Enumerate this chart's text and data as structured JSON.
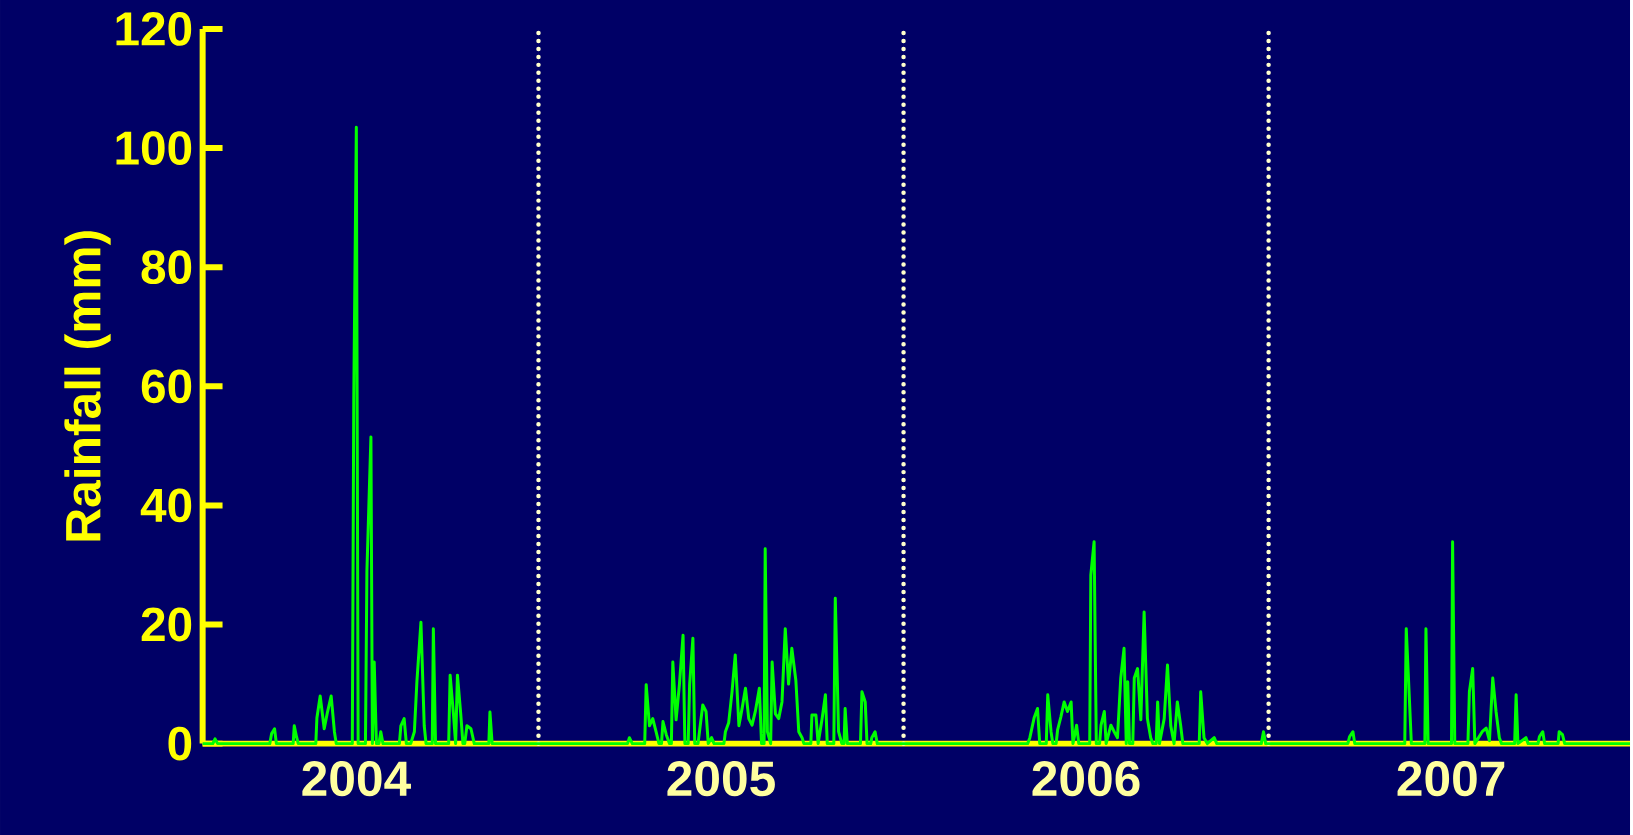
{
  "chart_data": {
    "type": "line",
    "ylabel": "Rainfall (mm)",
    "xlim": [
      2004.08,
      2007.99
    ],
    "ylim": [
      0,
      120
    ],
    "xticks": [
      {
        "value": 2004.5,
        "label": "2004"
      },
      {
        "value": 2005.5,
        "label": "2005"
      },
      {
        "value": 2006.5,
        "label": "2006"
      },
      {
        "value": 2007.5,
        "label": "2007"
      }
    ],
    "yticks": [
      0,
      20,
      40,
      60,
      80,
      100,
      120
    ],
    "ref_lines": [
      {
        "axis": "x",
        "value": 2005,
        "color": "#ffffcc",
        "line_style": "dotted"
      },
      {
        "axis": "x",
        "value": 2006,
        "color": "#ffffcc",
        "line_style": "dotted"
      },
      {
        "axis": "x",
        "value": 2007,
        "color": "#ffffcc",
        "line_style": "dotted"
      }
    ],
    "series": [
      {
        "color": "#00ff00",
        "x": [
          2004.08,
          2004.108,
          2004.114,
          2004.121,
          2004.264,
          2004.269,
          2004.277,
          2004.282,
          2004.328,
          2004.331,
          2004.337,
          2004.342,
          2004.39,
          2004.393,
          2004.402,
          2004.413,
          2004.422,
          2004.432,
          2004.441,
          2004.446,
          2004.49,
          2004.494,
          2004.501,
          2004.506,
          2004.526,
          2004.53,
          2004.541,
          2004.545,
          2004.55,
          2004.556,
          2004.563,
          2004.568,
          2004.574,
          2004.619,
          2004.623,
          2004.632,
          2004.638,
          2004.65,
          2004.66,
          2004.667,
          2004.678,
          2004.687,
          2004.692,
          2004.709,
          2004.712,
          2004.718,
          2004.754,
          2004.758,
          2004.767,
          2004.773,
          2004.778,
          2004.787,
          2004.793,
          2004.798,
          2004.804,
          2004.815,
          2004.824,
          2004.864,
          2004.867,
          2004.873,
          2005.244,
          2005.249,
          2005.257,
          2005.291,
          2005.295,
          2005.304,
          2005.313,
          2005.322,
          2005.33,
          2005.337,
          2005.341,
          2005.35,
          2005.359,
          2005.364,
          2005.368,
          2005.377,
          2005.386,
          2005.396,
          2005.401,
          2005.41,
          2005.414,
          2005.423,
          2005.428,
          2005.437,
          2005.441,
          2005.45,
          2005.459,
          2005.465,
          2005.474,
          2005.481,
          2005.508,
          2005.512,
          2005.521,
          2005.53,
          2005.539,
          2005.549,
          2005.558,
          2005.567,
          2005.576,
          2005.585,
          2005.594,
          2005.605,
          2005.611,
          2005.618,
          2005.621,
          2005.627,
          2005.636,
          2005.64,
          2005.649,
          2005.658,
          2005.667,
          2005.676,
          2005.685,
          2005.694,
          2005.705,
          2005.713,
          2005.722,
          2005.727,
          2005.746,
          2005.749,
          2005.76,
          2005.766,
          2005.777,
          2005.786,
          2005.791,
          2005.809,
          2005.813,
          2005.822,
          2005.831,
          2005.837,
          2005.84,
          2005.846,
          2005.882,
          2005.886,
          2005.895,
          2005.9,
          2005.91,
          2005.913,
          2005.922,
          2005.928,
          2006.34,
          2006.346,
          2006.358,
          2006.367,
          2006.373,
          2006.391,
          2006.395,
          2006.404,
          2006.409,
          2006.418,
          2006.422,
          2006.431,
          2006.44,
          2006.449,
          2006.459,
          2006.464,
          2006.469,
          2006.474,
          2006.48,
          2006.51,
          2006.513,
          2006.522,
          2006.528,
          2006.537,
          2006.541,
          2006.55,
          2006.555,
          2006.568,
          2006.577,
          2006.586,
          2006.595,
          2006.604,
          2006.61,
          2006.614,
          2006.619,
          2006.628,
          2006.632,
          2006.641,
          2006.65,
          2006.659,
          2006.668,
          2006.677,
          2006.683,
          2006.692,
          2006.696,
          2006.701,
          2006.714,
          2006.723,
          2006.732,
          2006.741,
          2006.75,
          2006.759,
          2006.765,
          2006.81,
          2006.814,
          2006.823,
          2006.832,
          2006.851,
          2006.858,
          2006.98,
          2006.986,
          2006.992,
          2007.217,
          2007.222,
          2007.231,
          2007.236,
          2007.373,
          2007.377,
          2007.386,
          2007.391,
          2007.428,
          2007.431,
          2007.437,
          2007.501,
          2007.504,
          2007.51,
          2007.546,
          2007.55,
          2007.559,
          2007.565,
          2007.585,
          2007.596,
          2007.605,
          2007.614,
          2007.623,
          2007.632,
          2007.638,
          2007.674,
          2007.678,
          2007.683,
          2007.705,
          2007.711,
          2007.738,
          2007.742,
          2007.751,
          2007.756,
          2007.793,
          2007.796,
          2007.805,
          2007.811,
          2007.99
        ],
        "values": [
          0,
          0,
          0.8,
          0,
          0,
          1.7,
          2.5,
          0,
          0,
          3,
          1.2,
          0,
          0,
          4.3,
          8,
          2.5,
          5.3,
          8,
          2,
          0,
          0,
          58,
          103.5,
          0,
          0,
          29,
          51.5,
          0,
          13.7,
          0,
          0,
          2,
          0,
          0,
          3,
          4.2,
          0,
          0,
          2,
          10.5,
          20.4,
          3,
          0,
          0,
          19.3,
          0,
          0,
          11.5,
          5,
          0,
          11.5,
          5,
          0,
          0,
          3,
          2.5,
          0,
          0,
          5.3,
          0,
          0,
          1,
          0,
          0,
          9.9,
          3,
          4.2,
          2,
          0,
          0,
          3.7,
          1.5,
          0,
          0,
          13.7,
          4,
          9.9,
          18.2,
          0,
          0,
          9.9,
          17.7,
          0,
          0,
          2,
          6.5,
          5.4,
          0,
          1,
          0,
          0,
          2,
          3.5,
          8.6,
          14.9,
          3,
          6,
          9.3,
          4.2,
          3.1,
          5.4,
          9.3,
          0,
          0,
          32.7,
          2,
          0,
          13.7,
          5,
          4.2,
          7,
          19.3,
          10,
          16,
          10.6,
          2,
          1,
          0,
          0,
          4.8,
          4.8,
          0,
          4.2,
          8.2,
          0,
          0,
          24.4,
          2,
          0,
          0,
          5.9,
          0,
          0,
          8.7,
          7,
          0,
          0,
          1,
          2,
          0,
          0,
          1,
          4.4,
          5.9,
          0,
          0,
          8.2,
          2,
          0,
          0,
          2.3,
          4.5,
          7,
          5.4,
          7,
          0,
          1.5,
          3.1,
          0,
          0,
          28.3,
          33.9,
          0,
          0,
          3.1,
          5.4,
          0,
          3.1,
          2,
          1,
          11,
          16,
          0,
          10.4,
          0,
          0,
          11,
          12.6,
          4,
          22.1,
          4.2,
          1,
          0,
          0,
          7,
          0,
          4.2,
          13.2,
          3,
          0,
          7,
          3.1,
          0,
          0,
          8.7,
          1,
          0,
          1,
          0,
          0,
          2,
          0,
          0,
          1.2,
          2,
          0,
          0,
          19.3,
          7,
          0,
          0,
          19.3,
          0,
          0,
          33.9,
          0,
          0,
          8.7,
          12.6,
          0,
          2,
          2.6,
          0.5,
          11,
          5.4,
          1,
          0,
          0,
          8.2,
          0,
          1,
          0,
          0,
          1.2,
          2,
          0,
          0,
          2,
          1.5,
          0,
          0
        ]
      }
    ]
  }
}
